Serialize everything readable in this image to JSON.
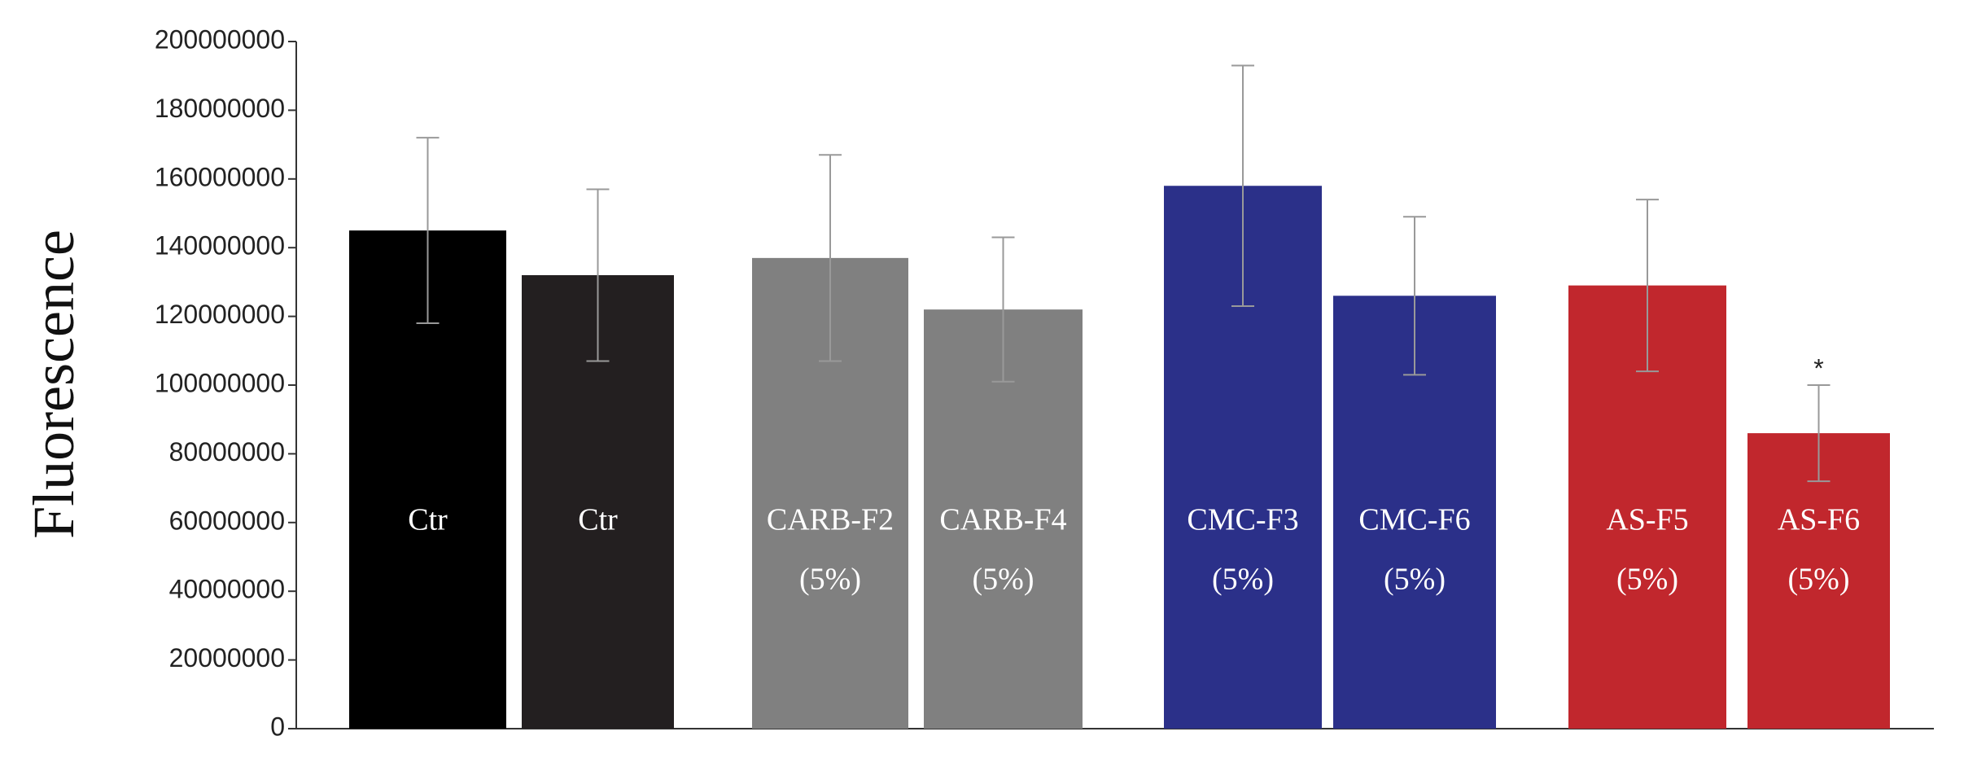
{
  "chart_data": {
    "type": "bar",
    "ylabel": "Fluorescence",
    "categories": [
      [
        "Ctr"
      ],
      [
        "Ctr"
      ],
      [
        "CARB-F2",
        "(5%)"
      ],
      [
        "CARB-F4",
        "(5%)"
      ],
      [
        "CMC-F3",
        "(5%)"
      ],
      [
        "CMC-F6",
        "(5%)"
      ],
      [
        "AS-F5",
        "(5%)"
      ],
      [
        "AS-F6",
        "(5%)"
      ]
    ],
    "values": [
      145000000,
      132000000,
      137000000,
      122000000,
      158000000,
      126000000,
      129000000,
      86000000
    ],
    "errors": [
      27000000,
      25000000,
      30000000,
      21000000,
      35000000,
      23000000,
      25000000,
      14000000
    ],
    "colors": [
      "#000000",
      "#231f20",
      "#808080",
      "#808080",
      "#2b3089",
      "#2b3089",
      "#c1272d",
      "#c1272d"
    ],
    "annotation": "*",
    "ylim": [
      0,
      200000000
    ],
    "yticks": [
      0,
      20000000,
      40000000,
      60000000,
      80000000,
      100000000,
      120000000,
      140000000,
      160000000,
      180000000,
      200000000
    ],
    "grid": false
  }
}
